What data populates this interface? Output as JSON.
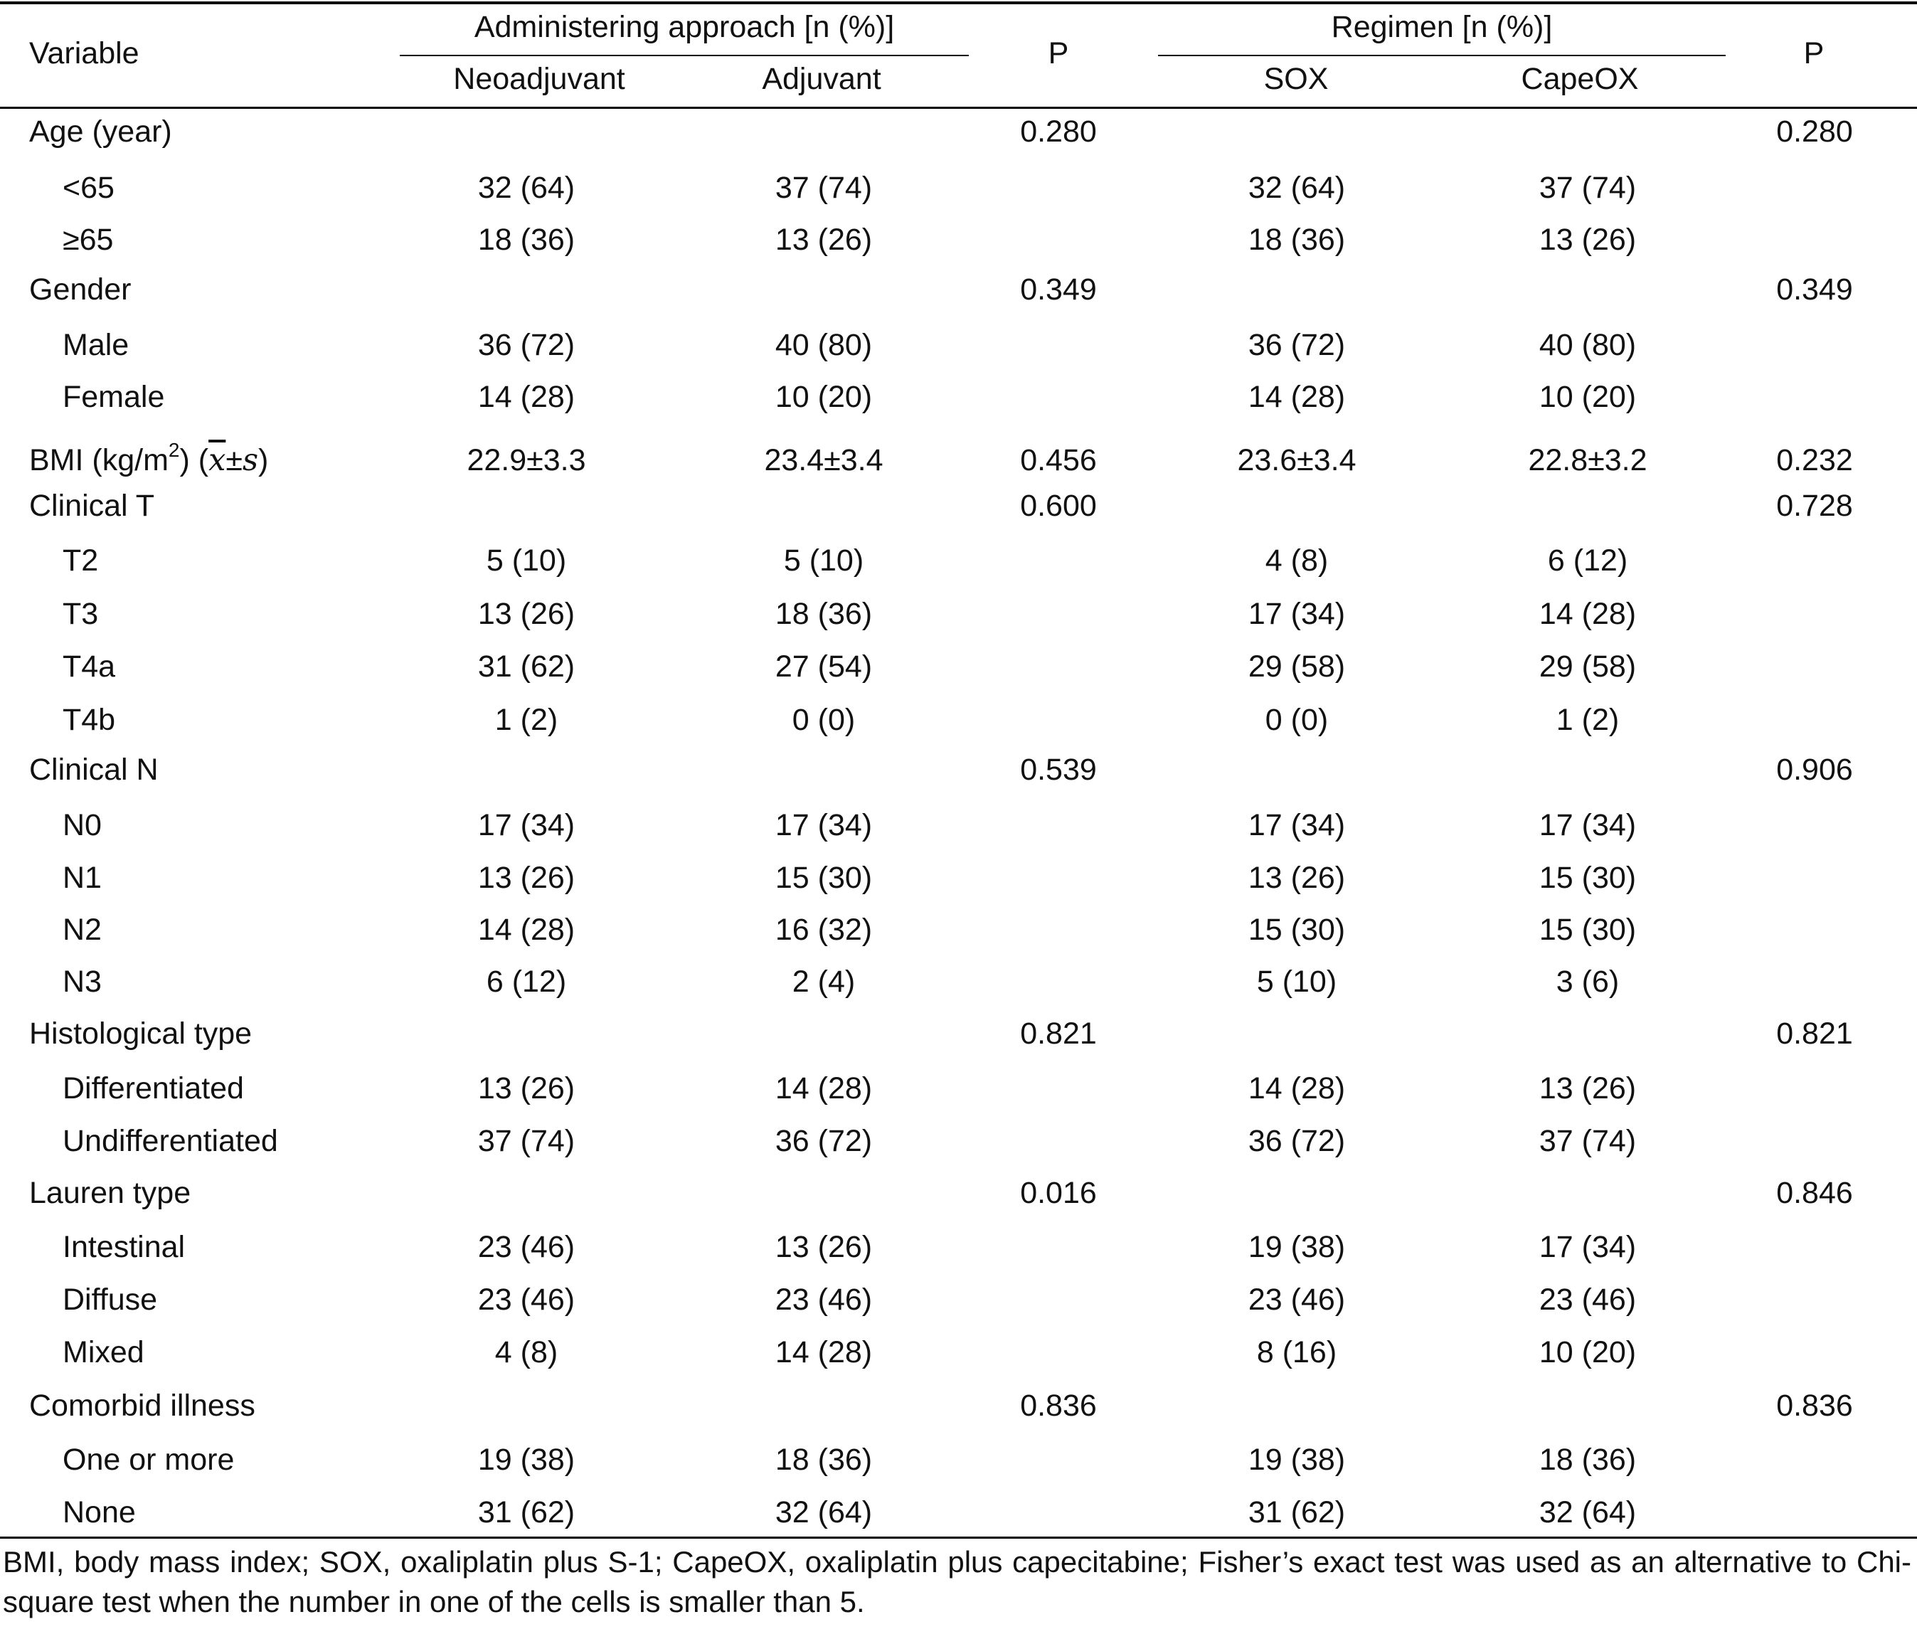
{
  "header": {
    "variable": "Variable",
    "group1": "Administering approach [n (%)]",
    "group2": "Regimen [n (%)]",
    "p": "P",
    "cols": [
      "Neoadjuvant",
      "Adjuvant",
      "SOX",
      "CapeOX"
    ]
  },
  "bmi_label": {
    "prefix": "BMI (kg/m",
    "sup": "2",
    "mid": ") (",
    "x": "x",
    "pm": "±",
    "s": "s",
    "suffix": ")"
  },
  "rows": [
    {
      "label": "Age (year)",
      "level": 0,
      "cells": [
        "",
        "",
        "0.280",
        "",
        "",
        "0.280"
      ]
    },
    {
      "label": "<65",
      "level": 1,
      "cells": [
        "32 (64)",
        "37 (74)",
        "",
        "32 (64)",
        "37 (74)",
        ""
      ]
    },
    {
      "label": "≥65",
      "level": 1,
      "cells": [
        "18 (36)",
        "13 (26)",
        "",
        "18 (36)",
        "13 (26)",
        ""
      ]
    },
    {
      "label": "Gender",
      "level": 0,
      "cells": [
        "",
        "",
        "0.349",
        "",
        "",
        "0.349"
      ]
    },
    {
      "label": "Male",
      "level": 1,
      "cells": [
        "36 (72)",
        "40 (80)",
        "",
        "36 (72)",
        "40 (80)",
        ""
      ]
    },
    {
      "label": "Female",
      "level": 1,
      "cells": [
        "14 (28)",
        "10 (20)",
        "",
        "14 (28)",
        "10 (20)",
        ""
      ]
    },
    {
      "label": "",
      "level": 0,
      "bmi": true,
      "cells": [
        "22.9±3.3",
        "23.4±3.4",
        "0.456",
        "23.6±3.4",
        "22.8±3.2",
        "0.232"
      ]
    },
    {
      "label": "Clinical T",
      "level": 0,
      "cells": [
        "",
        "",
        "0.600",
        "",
        "",
        "0.728"
      ]
    },
    {
      "label": "T2",
      "level": 1,
      "cells": [
        "5 (10)",
        "5 (10)",
        "",
        "4 (8)",
        "6 (12)",
        ""
      ]
    },
    {
      "label": "T3",
      "level": 1,
      "cells": [
        "13 (26)",
        "18 (36)",
        "",
        "17 (34)",
        "14 (28)",
        ""
      ]
    },
    {
      "label": "T4a",
      "level": 1,
      "cells": [
        "31 (62)",
        "27 (54)",
        "",
        "29 (58)",
        "29 (58)",
        ""
      ]
    },
    {
      "label": "T4b",
      "level": 1,
      "cells": [
        "1 (2)",
        "0 (0)",
        "",
        "0 (0)",
        "1 (2)",
        ""
      ]
    },
    {
      "label": "Clinical N",
      "level": 0,
      "cells": [
        "",
        "",
        "0.539",
        "",
        "",
        "0.906"
      ]
    },
    {
      "label": "N0",
      "level": 1,
      "cells": [
        "17 (34)",
        "17 (34)",
        "",
        "17 (34)",
        "17 (34)",
        ""
      ]
    },
    {
      "label": "N1",
      "level": 1,
      "cells": [
        "13 (26)",
        "15 (30)",
        "",
        "13 (26)",
        "15 (30)",
        ""
      ]
    },
    {
      "label": "N2",
      "level": 1,
      "cells": [
        "14 (28)",
        "16 (32)",
        "",
        "15 (30)",
        "15 (30)",
        ""
      ]
    },
    {
      "label": "N3",
      "level": 1,
      "cells": [
        "6 (12)",
        "2 (4)",
        "",
        "5 (10)",
        "3 (6)",
        ""
      ]
    },
    {
      "label": "Histological type",
      "level": 0,
      "cells": [
        "",
        "",
        "0.821",
        "",
        "",
        "0.821"
      ]
    },
    {
      "label": "Differentiated",
      "level": 1,
      "cells": [
        "13 (26)",
        "14 (28)",
        "",
        "14 (28)",
        "13 (26)",
        ""
      ]
    },
    {
      "label": "Undifferentiated",
      "level": 1,
      "cells": [
        "37 (74)",
        "36 (72)",
        "",
        "36 (72)",
        "37 (74)",
        ""
      ]
    },
    {
      "label": "Lauren type",
      "level": 0,
      "cells": [
        "",
        "",
        "0.016",
        "",
        "",
        "0.846"
      ]
    },
    {
      "label": "Intestinal",
      "level": 1,
      "cells": [
        "23 (46)",
        "13 (26)",
        "",
        "19 (38)",
        "17 (34)",
        ""
      ]
    },
    {
      "label": "Diffuse",
      "level": 1,
      "cells": [
        "23 (46)",
        "23 (46)",
        "",
        "23 (46)",
        "23 (46)",
        ""
      ]
    },
    {
      "label": "Mixed",
      "level": 1,
      "cells": [
        "4 (8)",
        "14 (28)",
        "",
        "8 (16)",
        "10 (20)",
        ""
      ]
    },
    {
      "label": "Comorbid illness",
      "level": 0,
      "cells": [
        "",
        "",
        "0.836",
        "",
        "",
        "0.836"
      ]
    },
    {
      "label": "One or more",
      "level": 1,
      "cells": [
        "19 (38)",
        "18 (36)",
        "",
        "19 (38)",
        "18 (36)",
        ""
      ]
    },
    {
      "label": "None",
      "level": 1,
      "cells": [
        "31 (62)",
        "32 (64)",
        "",
        "31 (62)",
        "32 (64)",
        ""
      ]
    }
  ],
  "footnote": "BMI, body mass index; SOX, oxaliplatin plus S-1; CapeOX, oxaliplatin plus capecitabine; Fisher’s exact test was used as an alternative to Chi-square test when the number in one of the cells is smaller than 5."
}
